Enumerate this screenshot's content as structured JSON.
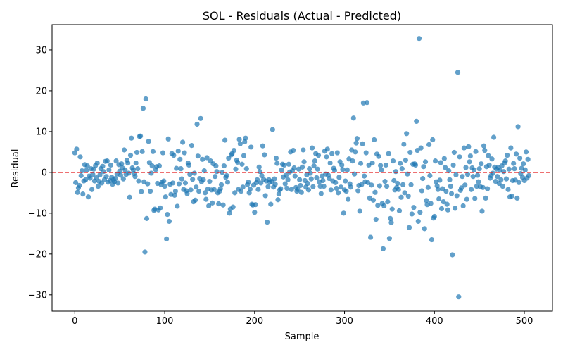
{
  "chart_data": {
    "type": "scatter",
    "title": "SOL - Residuals (Actual - Predicted)",
    "x_label": "Sample",
    "y_label": "Residual",
    "xlim": [
      -25.3,
      531.3
    ],
    "ylim": [
      -34,
      36.2
    ],
    "xticks": [
      0,
      100,
      200,
      300,
      400,
      500
    ],
    "yticks": [
      {
        "value": -30,
        "label": "−30"
      },
      {
        "value": -20,
        "label": "−20"
      },
      {
        "value": -10,
        "label": "−10"
      },
      0,
      10,
      20,
      30
    ],
    "reference_line": {
      "y": 0,
      "color": "#e41a1c"
    },
    "series": [
      {
        "name": "Residual",
        "color": "#1f77b4",
        "x": [
          0,
          1,
          2,
          3,
          4,
          5,
          6,
          7,
          8,
          9,
          10,
          11,
          12,
          13,
          14,
          15,
          16,
          17,
          18,
          19,
          20,
          21,
          22,
          23,
          24,
          25,
          26,
          27,
          28,
          29,
          30,
          31,
          32,
          33,
          34,
          35,
          36,
          37,
          38,
          39,
          40,
          41,
          42,
          43,
          44,
          45,
          46,
          47,
          48,
          49,
          50,
          51,
          52,
          53,
          54,
          55,
          56,
          57,
          58,
          59,
          60,
          61,
          62,
          63,
          64,
          65,
          66,
          67,
          68,
          69,
          70,
          71,
          72,
          73,
          74,
          75,
          76,
          77,
          78,
          79,
          80,
          81,
          82,
          83,
          84,
          85,
          86,
          87,
          88,
          89,
          90,
          91,
          92,
          93,
          94,
          95,
          96,
          97,
          98,
          99,
          100,
          101,
          102,
          103,
          104,
          105,
          106,
          107,
          108,
          109,
          110,
          111,
          112,
          113,
          114,
          115,
          116,
          117,
          118,
          119,
          120,
          121,
          122,
          123,
          124,
          125,
          126,
          127,
          128,
          129,
          130,
          131,
          132,
          133,
          134,
          135,
          136,
          137,
          138,
          139,
          140,
          141,
          142,
          143,
          144,
          145,
          146,
          147,
          148,
          149,
          150,
          151,
          152,
          153,
          154,
          155,
          156,
          157,
          158,
          159,
          160,
          161,
          162,
          163,
          164,
          165,
          166,
          167,
          168,
          169,
          170,
          171,
          172,
          173,
          174,
          175,
          176,
          177,
          178,
          179,
          180,
          181,
          182,
          183,
          184,
          185,
          186,
          187,
          188,
          189,
          190,
          191,
          192,
          193,
          194,
          195,
          196,
          197,
          198,
          199,
          200,
          201,
          202,
          203,
          204,
          205,
          206,
          207,
          208,
          209,
          210,
          211,
          212,
          213,
          214,
          215,
          216,
          217,
          218,
          219,
          220,
          221,
          222,
          223,
          224,
          225,
          226,
          227,
          228,
          229,
          230,
          231,
          232,
          233,
          234,
          235,
          236,
          237,
          238,
          239,
          240,
          241,
          242,
          243,
          244,
          245,
          246,
          247,
          248,
          249,
          250,
          251,
          252,
          253,
          254,
          255,
          256,
          257,
          258,
          259,
          260,
          261,
          262,
          263,
          264,
          265,
          266,
          267,
          268,
          269,
          270,
          271,
          272,
          273,
          274,
          275,
          276,
          277,
          278,
          279,
          280,
          281,
          282,
          283,
          284,
          285,
          286,
          287,
          288,
          289,
          290,
          291,
          292,
          293,
          294,
          295,
          296,
          297,
          298,
          299,
          300,
          301,
          302,
          303,
          304,
          305,
          306,
          307,
          308,
          309,
          310,
          311,
          312,
          313,
          314,
          315,
          316,
          317,
          318,
          319,
          320,
          321,
          322,
          323,
          324,
          325,
          326,
          327,
          328,
          329,
          330,
          331,
          332,
          333,
          334,
          335,
          336,
          337,
          338,
          339,
          340,
          341,
          342,
          343,
          344,
          345,
          346,
          347,
          348,
          349,
          350,
          351,
          352,
          353,
          354,
          355,
          356,
          357,
          358,
          359,
          360,
          361,
          362,
          363,
          364,
          365,
          366,
          367,
          368,
          369,
          370,
          371,
          372,
          373,
          374,
          375,
          376,
          377,
          378,
          379,
          380,
          381,
          382,
          383,
          384,
          385,
          386,
          387,
          388,
          389,
          390,
          391,
          392,
          393,
          394,
          395,
          396,
          397,
          398,
          399,
          400,
          401,
          402,
          403,
          404,
          405,
          406,
          407,
          408,
          409,
          410,
          411,
          412,
          413,
          414,
          415,
          416,
          417,
          418,
          419,
          420,
          421,
          422,
          423,
          424,
          425,
          426,
          427,
          428,
          429,
          430,
          431,
          432,
          433,
          434,
          435,
          436,
          437,
          438,
          439,
          440,
          441,
          442,
          443,
          444,
          445,
          446,
          447,
          448,
          449,
          450,
          451,
          452,
          453,
          454,
          455,
          456,
          457,
          458,
          459,
          460,
          461,
          462,
          463,
          464,
          465,
          466,
          467,
          468,
          469,
          470,
          471,
          472,
          473,
          474,
          475,
          476,
          477,
          478,
          479,
          480,
          481,
          482,
          483,
          484,
          485,
          486,
          487,
          488,
          489,
          490,
          491,
          492,
          493,
          494,
          495,
          496,
          497,
          498,
          499,
          500,
          501,
          502,
          503,
          504,
          505
        ],
        "values": [
          4.8,
          -2.5,
          5.7,
          -4.9,
          -3.8,
          -3.2,
          3.8,
          -0.8,
          0.4,
          -5.3,
          -2.1,
          1.9,
          -1.8,
          0.5,
          1.6,
          -6.0,
          -0.9,
          -1.4,
          0.9,
          -4.2,
          -0.5,
          0.8,
          -2.1,
          1.7,
          -1.3,
          2.3,
          -3.4,
          -2.2,
          -0.6,
          0.9,
          -2.6,
          1.5,
          0.2,
          -1.8,
          2.7,
          -1.0,
          2.8,
          -2.4,
          0.6,
          -2.0,
          1.8,
          -1.2,
          -2.9,
          -1.8,
          -2.3,
          -1.5,
          2.8,
          -0.4,
          -2.6,
          1.9,
          0.3,
          -0.7,
          2.1,
          1.1,
          -1.6,
          5.5,
          0.6,
          -0.5,
          3.0,
          2.3,
          -0.2,
          -6.1,
          4.2,
          8.4,
          1.1,
          0.6,
          -0.3,
          -1.0,
          2.3,
          4.9,
          0.9,
          -2.1,
          8.8,
          8.9,
          -4.7,
          5.1,
          15.7,
          -2.3,
          -19.5,
          18.0,
          -11.3,
          -2.8,
          7.6,
          2.4,
          -4.6,
          -0.2,
          1.6,
          5.1,
          -9.3,
          -9.0,
          0.7,
          1.4,
          -2.7,
          -9.2,
          1.6,
          -8.7,
          -3.0,
          -2.4,
          4.8,
          -2.1,
          -3.4,
          -6.0,
          -16.3,
          -10.3,
          8.2,
          -12.0,
          -2.9,
          -5.4,
          4.6,
          -2.6,
          4.2,
          -5.6,
          -4.6,
          1.0,
          -8.3,
          5.2,
          -2.8,
          3.2,
          0.9,
          -1.6,
          7.4,
          -4.2,
          4.8,
          -2.6,
          -4.5,
          -5.2,
          2.3,
          1.8,
          -0.5,
          -4.3,
          6.6,
          -1.7,
          -7.2,
          -0.2,
          -6.8,
          -3.6,
          11.8,
          4.0,
          -4.6,
          -1.5,
          13.2,
          -2.3,
          3.2,
          -1.8,
          0.4,
          -5.0,
          -6.6,
          3.6,
          -4.1,
          -8.2,
          -2.2,
          2.8,
          -4.3,
          -7.5,
          2.1,
          -4.2,
          -1.0,
          1.6,
          0.2,
          -5.0,
          -7.7,
          -4.6,
          -4.0,
          -3.0,
          0.0,
          -8.0,
          1.6,
          7.9,
          -1.2,
          -0.8,
          -2.4,
          3.5,
          -10.0,
          -9.0,
          4.3,
          4.6,
          -8.5,
          5.4,
          -5.0,
          0.8,
          3.0,
          2.5,
          -4.2,
          8.1,
          7.0,
          -4.6,
          2.0,
          -3.6,
          4.1,
          7.5,
          8.4,
          0.9,
          -3.0,
          -2.4,
          -5.0,
          -4.1,
          6.2,
          -7.8,
          -8.0,
          -3.1,
          -9.8,
          -7.9,
          -2.5,
          -1.8,
          -4.2,
          1.3,
          0.2,
          -2.6,
          -0.8,
          6.5,
          -1.7,
          4.3,
          -5.7,
          -2.1,
          -12.2,
          -3.5,
          -1.8,
          -2.4,
          -7.8,
          -2.2,
          10.5,
          -3.6,
          -1.6,
          -2.9,
          3.5,
          2.2,
          -6.7,
          -5.3,
          -4.3,
          -4.0,
          0.6,
          2.0,
          -1.1,
          1.8,
          -2.8,
          -0.7,
          -3.9,
          -1.8,
          2.0,
          0.1,
          5.0,
          -4.2,
          0.4,
          5.4,
          1.1,
          -0.9,
          -3.7,
          -4.6,
          -4.2,
          0.8,
          -1.8,
          -3.2,
          -4.9,
          1.3,
          5.5,
          2.6,
          -2.0,
          -3.6,
          -0.6,
          -2.7,
          -4.3,
          0.9,
          -0.2,
          -1.6,
          6.0,
          -3.5,
          1.6,
          2.8,
          4.6,
          -1.3,
          0.8,
          4.2,
          -2.3,
          -3.4,
          -5.2,
          -0.9,
          -2.0,
          -3.4,
          5.2,
          -0.4,
          3.8,
          5.7,
          -0.7,
          -1.5,
          2.3,
          -4.3,
          4.6,
          -2.1,
          1.0,
          0.5,
          -2.5,
          -3.9,
          4.8,
          -5.0,
          -1.2,
          2.6,
          -3.6,
          1.8,
          0.7,
          -10.0,
          -4.3,
          -2.1,
          -4.6,
          0.6,
          -6.6,
          3.3,
          -2.8,
          -3.6,
          5.5,
          2.8,
          13.3,
          -0.4,
          5.0,
          7.2,
          8.3,
          -4.5,
          -3.2,
          -9.5,
          2.2,
          -3.0,
          7.0,
          17.0,
          -0.9,
          -2.3,
          4.8,
          17.1,
          -2.5,
          1.8,
          -6.3,
          -15.9,
          -3.1,
          2.3,
          -6.8,
          8.0,
          -4.9,
          -11.5,
          4.5,
          -8.1,
          3.9,
          -3.3,
          1.7,
          0.6,
          -7.6,
          -18.7,
          -8.2,
          -2.2,
          1.8,
          -3.4,
          -7.2,
          4.6,
          -16.2,
          -11.3,
          -12.3,
          -9.0,
          2.8,
          -2.0,
          -4.3,
          0.2,
          -3.7,
          -2.7,
          -4.2,
          -9.4,
          2.2,
          -6.1,
          0.9,
          -3.0,
          6.9,
          -5.0,
          3.0,
          9.5,
          -0.4,
          -5.8,
          -13.5,
          4.9,
          -3.0,
          -10.2,
          2.0,
          -8.6,
          2.1,
          1.8,
          12.5,
          5.4,
          -12.0,
          32.8,
          -9.8,
          6.0,
          -4.5,
          -1.5,
          1.4,
          -13.8,
          2.6,
          -6.9,
          -7.9,
          -3.7,
          6.8,
          -0.8,
          -7.6,
          -16.5,
          8.0,
          -11.2,
          -10.8,
          2.8,
          -2.3,
          -3.3,
          -4.2,
          -6.5,
          -1.9,
          2.4,
          -8.9,
          -4.0,
          -7.2,
          3.4,
          1.2,
          -4.6,
          -7.8,
          -9.2,
          0.4,
          -1.8,
          -3.4,
          -5.2,
          -20.2,
          1.8,
          4.9,
          -8.8,
          -0.6,
          -5.7,
          24.5,
          -30.5,
          3.8,
          -4.4,
          -3.8,
          -1.0,
          -8.2,
          6.0,
          -3.1,
          1.2,
          -6.6,
          -0.5,
          6.3,
          2.6,
          4.0,
          -4.2,
          1.1,
          -1.0,
          0.6,
          -6.4,
          5.1,
          -3.4,
          -0.7,
          -2.3,
          0.9,
          -3.5,
          2.1,
          -9.5,
          -3.7,
          6.5,
          5.4,
          -6.3,
          1.4,
          -4.0,
          4.1,
          1.8,
          -1.4,
          -0.8,
          3.3,
          -0.2,
          8.6,
          1.3,
          -2.2,
          0.8,
          -1.0,
          1.2,
          -2.7,
          0.5,
          -1.8,
          1.6,
          -3.4,
          0.2,
          2.3,
          2.8,
          -1.6,
          4.2,
          -4.2,
          0.8,
          -6.0,
          6.0,
          -5.8,
          -2.0,
          2.2,
          0.9,
          -1.9,
          4.5,
          -6.3,
          11.2,
          -2.5,
          3.5,
          -0.3,
          1.0,
          -1.2,
          2.1,
          -2.0,
          0.6,
          5.0,
          -1.4,
          3.2,
          -0.8
        ]
      }
    ]
  }
}
